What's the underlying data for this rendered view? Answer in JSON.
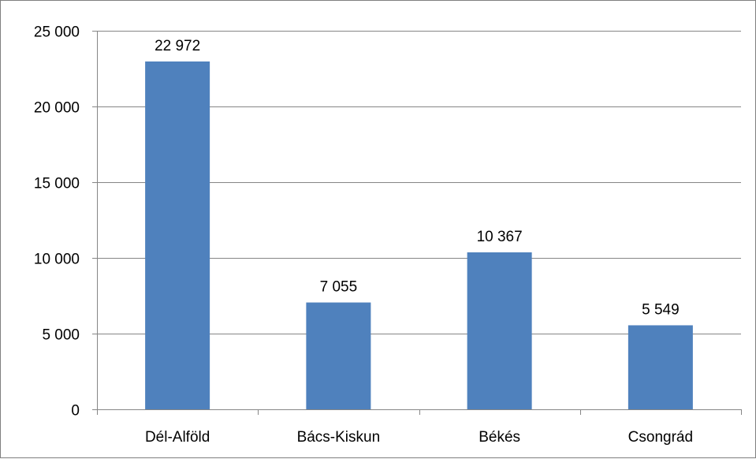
{
  "chart_data": {
    "type": "bar",
    "title": "",
    "xlabel": "",
    "ylabel": "",
    "categories": [
      "Dél-Alföld",
      "Bács-Kiskun",
      "Békés",
      "Csongrád"
    ],
    "values": [
      22972,
      7055,
      10367,
      5549
    ],
    "data_labels": [
      "22 972",
      "7 055",
      "10 367",
      "5 549"
    ],
    "ylim": [
      0,
      25000
    ],
    "yticks": [
      0,
      5000,
      10000,
      15000,
      20000,
      25000
    ],
    "ytick_labels": [
      "0",
      "5 000",
      "10 000",
      "15 000",
      "20 000",
      "25 000"
    ],
    "grid": true,
    "legend": "none",
    "bar_color": "#4f81bd",
    "grid_color": "#868686"
  }
}
